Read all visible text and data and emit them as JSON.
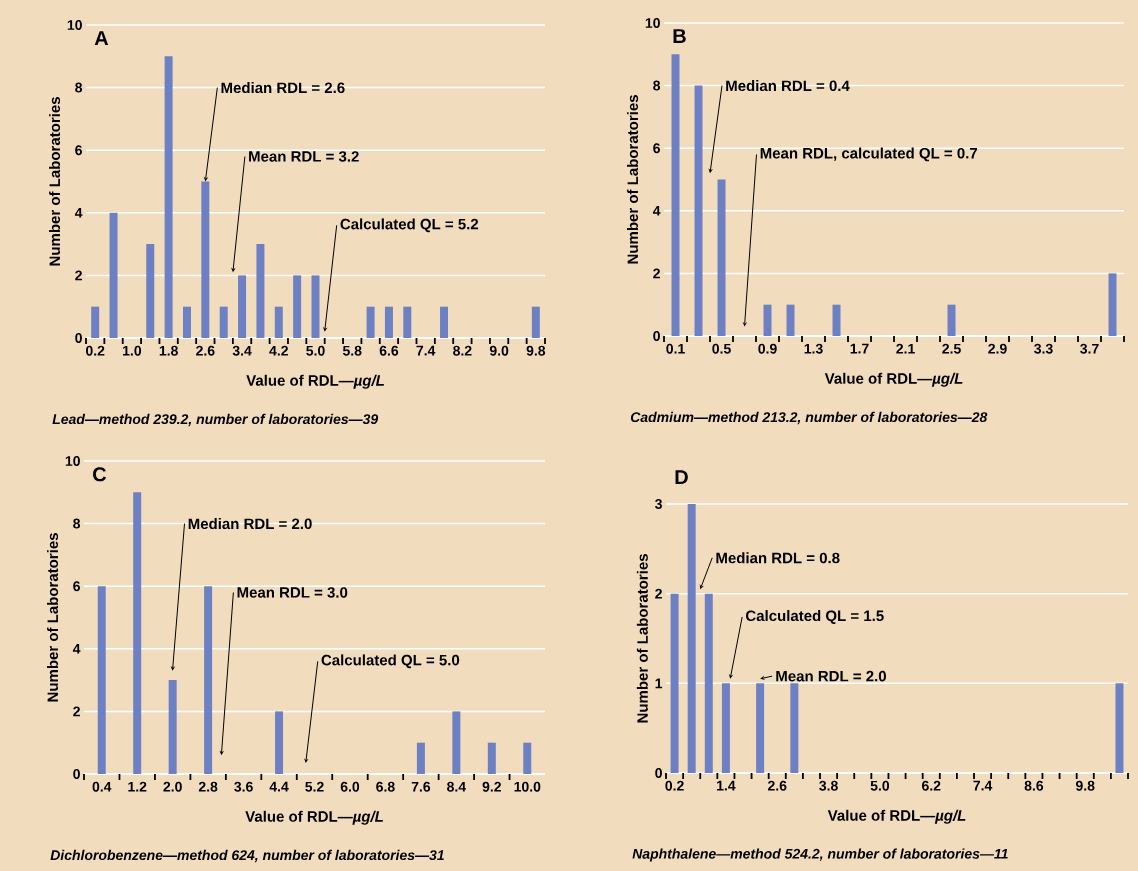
{
  "chart_data": [
    {
      "type": "bar",
      "title": "A",
      "xlabel": "Value of RDL—*µg/L*",
      "ylabel": "Number of Laboratories",
      "color": "#6e80c4",
      "grid": "y",
      "x": [
        0.2,
        0.6,
        1.4,
        1.8,
        2.2,
        2.6,
        3.0,
        3.4,
        3.8,
        4.2,
        4.6,
        5.0,
        6.2,
        6.6,
        7.0,
        7.8,
        9.8
      ],
      "values": [
        1,
        4,
        3,
        9,
        1,
        5,
        1,
        2,
        3,
        1,
        2,
        2,
        1,
        1,
        1,
        1,
        1
      ],
      "xlim": [
        0,
        10
      ],
      "ylim": [
        0,
        10
      ],
      "yticks": [
        0,
        2,
        4,
        6,
        8,
        10
      ],
      "xticks": [
        0.2,
        {
          "value": 1.0,
          "label": "1.0"
        },
        1.8,
        2.6,
        3.4,
        4.2,
        {
          "value": 5.0,
          "label": "5.0"
        },
        5.8,
        6.6,
        7.4,
        8.2,
        {
          "value": 9.0,
          "label": "9.0"
        },
        9.8,
        {
          "value": 0,
          "label": null
        },
        {
          "value": 0.4,
          "label": null
        },
        {
          "value": 0.8,
          "label": null
        },
        {
          "value": 1.2,
          "label": null
        },
        {
          "value": 1.6,
          "label": null
        },
        {
          "value": 2.0,
          "label": null
        },
        {
          "value": 2.4,
          "label": null
        },
        {
          "value": 2.8,
          "label": null
        },
        {
          "value": 3.2,
          "label": null
        },
        {
          "value": 3.6,
          "label": null
        },
        {
          "value": 4.0,
          "label": null
        },
        {
          "value": 4.4,
          "label": null
        },
        {
          "value": 4.8,
          "label": null
        },
        {
          "value": 5.2,
          "label": null
        },
        {
          "value": 5.6,
          "label": null
        },
        {
          "value": 6.0,
          "label": null
        },
        {
          "value": 6.4,
          "label": null
        },
        {
          "value": 6.8,
          "label": null
        },
        {
          "value": 7.2,
          "label": null
        },
        {
          "value": 7.6,
          "label": null
        },
        {
          "value": 8.0,
          "label": null
        },
        {
          "value": 8.4,
          "label": null
        },
        {
          "value": 8.8,
          "label": null
        },
        {
          "value": 9.2,
          "label": null
        },
        {
          "value": 9.6,
          "label": null
        },
        {
          "value": 10.0,
          "label": null
        }
      ],
      "annotations": [
        {
          "text": "Median RDL = 2.6",
          "x": 2.6,
          "y": 5
        },
        "Mean RDL = 3.2",
        "Calculated QL = 5.2",
        "Lead—method 239.2, number of laboratories—39"
      ]
    },
    {
      "type": "bar",
      "title": "B",
      "xlabel": "Value of RDL—*µg/L*",
      "ylabel": "Number of Laboratories",
      "color": "#6e80c4",
      "grid": "y",
      "x": [
        0.1,
        0.3,
        0.5,
        0.9,
        1.1,
        1.5,
        2.5,
        3.9
      ],
      "values": [
        9,
        8,
        5,
        1,
        1,
        1,
        1,
        2
      ],
      "xlim": [
        0,
        4
      ],
      "ylim": [
        0,
        10
      ],
      "yticks": [
        0,
        2,
        4,
        6,
        8,
        10
      ],
      "xticks": [
        0.1,
        0.5,
        0.9,
        1.3,
        1.7,
        2.1,
        2.5,
        2.9,
        3.3,
        3.7,
        {
          "value": 0,
          "label": null
        },
        {
          "value": 0.2,
          "label": null
        },
        {
          "value": 0.4,
          "label": null
        },
        {
          "value": 0.6,
          "label": null
        },
        {
          "value": 0.8,
          "label": null
        },
        {
          "value": 1.0,
          "label": null
        },
        {
          "value": 1.2,
          "label": null
        },
        {
          "value": 1.4,
          "label": null
        },
        {
          "value": 1.6,
          "label": null
        },
        {
          "value": 1.8,
          "label": null
        },
        {
          "value": 2.0,
          "label": null
        },
        {
          "value": 2.2,
          "label": null
        },
        {
          "value": 2.4,
          "label": null
        },
        {
          "value": 2.6,
          "label": null
        },
        {
          "value": 2.8,
          "label": null
        },
        {
          "value": 3.0,
          "label": null
        },
        {
          "value": 3.2,
          "label": null
        },
        {
          "value": 3.4,
          "label": null
        },
        {
          "value": 3.6,
          "label": null
        },
        {
          "value": 3.8,
          "label": null
        },
        {
          "value": 4.0,
          "label": null
        }
      ],
      "annotations": [
        "Median RDL = 0.4",
        "Mean RDL, calculated QL = 0.7",
        "Cadmium—method 213.2, number of laboratories—28"
      ]
    },
    {
      "type": "bar",
      "title": "C",
      "xlabel": "Value of RDL—*µg/L*",
      "ylabel": "Number of Laboratories",
      "color": "#6e80c4",
      "grid": "y",
      "x": [
        0.4,
        1.2,
        2.0,
        2.8,
        4.4,
        7.6,
        8.4,
        9.2,
        10.0
      ],
      "values": [
        6,
        9,
        3,
        6,
        2,
        1,
        2,
        1,
        1
      ],
      "xlim": [
        0,
        10.4
      ],
      "ylim": [
        0,
        10
      ],
      "yticks": [
        0,
        2,
        4,
        6,
        8,
        10
      ],
      "xticks": [
        0.4,
        1.2,
        {
          "value": 2.0,
          "label": "2.0"
        },
        2.8,
        3.6,
        4.4,
        5.2,
        {
          "value": 6.0,
          "label": "6.0"
        },
        6.8,
        7.6,
        8.4,
        9.2,
        {
          "value": 10.0,
          "label": "10.0"
        },
        {
          "value": 0,
          "label": null
        },
        {
          "value": 0.8,
          "label": null
        },
        {
          "value": 1.6,
          "label": null
        },
        {
          "value": 2.4,
          "label": null
        },
        {
          "value": 3.2,
          "label": null
        },
        {
          "value": 4.0,
          "label": null
        },
        {
          "value": 4.8,
          "label": null
        },
        {
          "value": 5.6,
          "label": null
        },
        {
          "value": 6.4,
          "label": null
        },
        {
          "value": 7.2,
          "label": null
        },
        {
          "value": 8.0,
          "label": null
        },
        {
          "value": 8.8,
          "label": null
        },
        {
          "value": 9.6,
          "label": null
        }
      ],
      "annotations": [
        "Median RDL = 2.0",
        "Mean RDL = 3.0",
        "Calculated QL = 5.0",
        "Dichlorobenzene—method 624, number of laboratories—31"
      ]
    },
    {
      "type": "bar",
      "title": "D",
      "xlabel": "Value of RDL—*µg/L*",
      "ylabel": "Number of Laboratories",
      "color": "#6e80c4",
      "grid": "y",
      "x": [
        0.2,
        0.6,
        1.0,
        1.4,
        2.2,
        3.0,
        10.6
      ],
      "values": [
        2,
        3,
        2,
        1,
        1,
        1,
        1
      ],
      "xlim": [
        0,
        10.8
      ],
      "ylim": [
        0,
        3
      ],
      "yticks": [
        0,
        1,
        2,
        3
      ],
      "xticks": [
        0.2,
        1.4,
        2.6,
        3.8,
        {
          "value": 5.0,
          "label": "5.0"
        },
        6.2,
        7.4,
        8.6,
        9.8,
        {
          "value": 0,
          "label": null
        },
        {
          "value": 0.4,
          "label": null
        },
        {
          "value": 0.8,
          "label": null
        },
        {
          "value": 1.2,
          "label": null
        },
        {
          "value": 1.6,
          "label": null
        },
        {
          "value": 2.0,
          "label": null
        },
        {
          "value": 2.4,
          "label": null
        },
        {
          "value": 2.8,
          "label": null
        },
        {
          "value": 3.2,
          "label": null
        },
        {
          "value": 3.6,
          "label": null
        },
        {
          "value": 4.0,
          "label": null
        },
        {
          "value": 4.4,
          "label": null
        },
        {
          "value": 4.8,
          "label": null
        },
        {
          "value": 5.2,
          "label": null
        },
        {
          "value": 5.6,
          "label": null
        },
        {
          "value": 6.0,
          "label": null
        },
        {
          "value": 6.4,
          "label": null
        },
        {
          "value": 6.8,
          "label": null
        },
        {
          "value": 7.2,
          "label": null
        },
        {
          "value": 7.6,
          "label": null
        },
        {
          "value": 8.0,
          "label": null
        },
        {
          "value": 8.4,
          "label": null
        },
        {
          "value": 8.8,
          "label": null
        },
        {
          "value": 9.2,
          "label": null
        },
        {
          "value": 9.6,
          "label": null
        },
        {
          "value": 10.0,
          "label": null
        },
        {
          "value": 10.4,
          "label": null
        },
        {
          "value": 10.8,
          "label": null
        }
      ],
      "annotations": [
        {
          "text": "Median RDL = 0.8",
          "x": 0.8,
          "y": 2.05
        },
        {
          "text": "Calculated QL = 1.5",
          "x": 1.5,
          "y": 1.05
        },
        {
          "text": "Mean RDL = 2.0",
          "x": 2.2,
          "y": 1.05
        },
        "Naphthalene—method 524.2, number of laboratories—11"
      ]
    }
  ]
}
